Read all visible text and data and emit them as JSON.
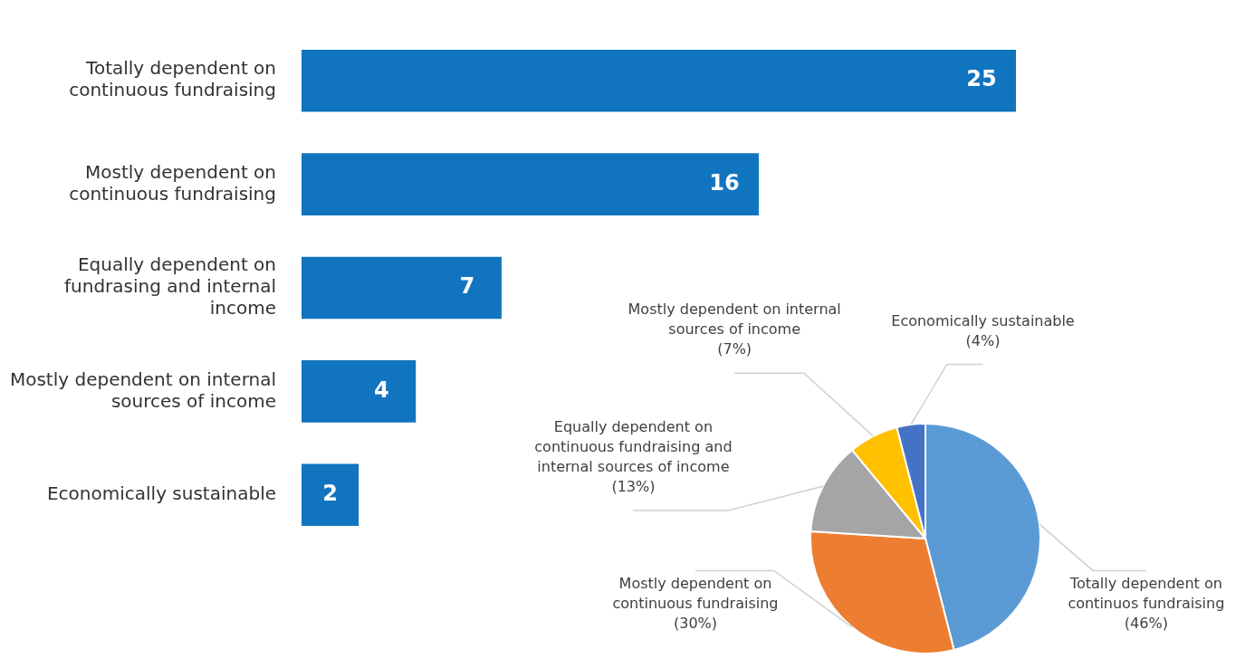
{
  "chart_data": [
    {
      "type": "bar",
      "orientation": "horizontal",
      "categories": [
        "Totally dependent on continuous fundraising",
        "Mostly dependent on continuous fundraising",
        "Equally dependent on fundrasing and internal income",
        "Mostly dependent on internal sources of income",
        "Economically sustainable"
      ],
      "values": [
        25,
        16,
        7,
        4,
        2
      ],
      "color": "#1174be",
      "data_labels": true,
      "tick_labels": "y"
    },
    {
      "type": "pie",
      "categories": [
        "Totally dependent on continuos fundraising",
        "Mostly dependent on continuous fundraising",
        "Equally dependent on continuous fundraising and internal sources of income",
        "Mostly dependent on internal sources of income",
        "Economically sustainable"
      ],
      "values": [
        46,
        30,
        13,
        7,
        4
      ],
      "colors": [
        "#5b9bd5",
        "#ed7d31",
        "#a5a5a5",
        "#ffc000",
        "#4472c4"
      ],
      "value_labels": [
        "(46%)",
        "(30%)",
        "(13%)",
        "(7%)",
        "(4%)"
      ]
    }
  ]
}
